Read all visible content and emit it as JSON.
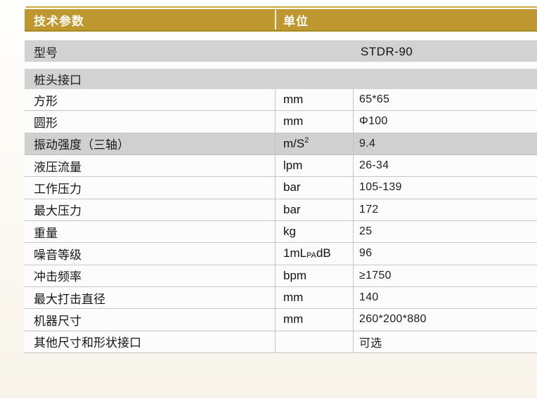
{
  "page": {
    "colors": {
      "accent_gold": "#BE9730",
      "gold_rule": "#CBA83E",
      "shade_gray": "#D2D2D2",
      "row_white": "#FCFCFC",
      "background_cream": "#F8F4EA"
    }
  },
  "table": {
    "header": {
      "param_label": "技术参数",
      "unit_label": "单位"
    },
    "model_row": {
      "label": "型号",
      "value": "STDR-90"
    },
    "section_row": {
      "label": "桩头接口"
    },
    "rows": [
      {
        "label": "方形",
        "unit": "mm",
        "value": "65*65"
      },
      {
        "label": "圆形",
        "unit": "mm",
        "value": "Φ100"
      },
      {
        "label": "振动强度（三轴）",
        "unit_pre": "m/S",
        "unit_sup": "2",
        "value": "9.4"
      },
      {
        "label": "液压流量",
        "unit": "lpm",
        "value": "26-34"
      },
      {
        "label": "工作压力",
        "unit": "bar",
        "value": "105-139"
      },
      {
        "label": "最大压力",
        "unit": "bar",
        "value": "172"
      },
      {
        "label": "重量",
        "unit": "kg",
        "value": "25"
      },
      {
        "label": "噪音等级",
        "unit_pre": "1mL",
        "unit_sub": "PA",
        "unit_post": "dB",
        "value": "96"
      },
      {
        "label": "冲击频率",
        "unit": "bpm",
        "value": "≥1750"
      },
      {
        "label": "最大打击直径",
        "unit": "mm",
        "value": "140"
      },
      {
        "label": "机器尺寸",
        "unit": "mm",
        "value": "260*200*880"
      },
      {
        "label": "其他尺寸和形状接口",
        "unit": "",
        "value": "可选"
      }
    ]
  }
}
